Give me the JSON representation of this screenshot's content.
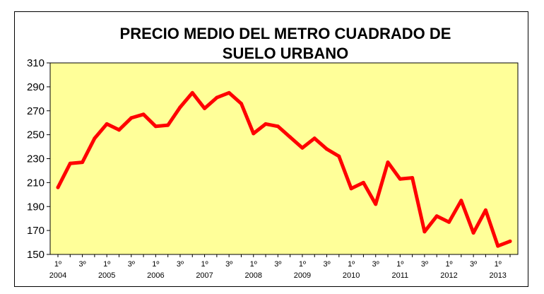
{
  "chart_data": {
    "type": "line",
    "title_lines": [
      "PRECIO MEDIO DEL METRO CUADRADO DE",
      "SUELO URBANO"
    ],
    "xlabel": "",
    "ylabel": "",
    "ylim": [
      150,
      310
    ],
    "yticks": [
      150,
      170,
      190,
      210,
      230,
      250,
      270,
      290,
      310
    ],
    "grid": false,
    "legend": "none",
    "colors": {
      "plot_background": "#ffff99",
      "line": "#ff0000",
      "frame": "#000000"
    },
    "x": [
      "1º 2004",
      "2º 2004",
      "3º 2004",
      "4º 2004",
      "1º 2005",
      "2º 2005",
      "3º 2005",
      "4º 2005",
      "1º 2006",
      "2º 2006",
      "3º 2006",
      "4º 2006",
      "1º 2007",
      "2º 2007",
      "3º 2007",
      "4º 2007",
      "1º 2008",
      "2º 2008",
      "3º 2008",
      "4º 2008",
      "1º 2009",
      "2º 2009",
      "3º 2009",
      "4º 2009",
      "1º 2010",
      "2º 2010",
      "3º 2010",
      "4º 2010",
      "1º 2011",
      "2º 2011",
      "3º 2011",
      "4º 2011",
      "1º 2012",
      "2º 2012",
      "3º 2012",
      "4º 2012",
      "1º 2013",
      "2º 2013"
    ],
    "series": [
      {
        "values": [
          206,
          226,
          227,
          247,
          259,
          254,
          264,
          267,
          257,
          258,
          273,
          285,
          272,
          281,
          285,
          276,
          251,
          259,
          257,
          248,
          239,
          247,
          238,
          232,
          205,
          210,
          192,
          227,
          213,
          214,
          169,
          182,
          177,
          195,
          168,
          187,
          157,
          161
        ]
      }
    ],
    "xtick_labels": [
      {
        "index": 0,
        "quarter": "1º",
        "year": "2004"
      },
      {
        "index": 2,
        "quarter": "3º",
        "year": ""
      },
      {
        "index": 4,
        "quarter": "1º",
        "year": "2005"
      },
      {
        "index": 6,
        "quarter": "3º",
        "year": ""
      },
      {
        "index": 8,
        "quarter": "1º",
        "year": "2006"
      },
      {
        "index": 10,
        "quarter": "3º",
        "year": ""
      },
      {
        "index": 12,
        "quarter": "1º",
        "year": "2007"
      },
      {
        "index": 14,
        "quarter": "3º",
        "year": ""
      },
      {
        "index": 16,
        "quarter": "1º",
        "year": "2008"
      },
      {
        "index": 18,
        "quarter": "3º",
        "year": ""
      },
      {
        "index": 20,
        "quarter": "1º",
        "year": "2009"
      },
      {
        "index": 22,
        "quarter": "3º",
        "year": ""
      },
      {
        "index": 24,
        "quarter": "1º",
        "year": "2010"
      },
      {
        "index": 26,
        "quarter": "3º",
        "year": ""
      },
      {
        "index": 28,
        "quarter": "1º",
        "year": "2011"
      },
      {
        "index": 30,
        "quarter": "3º",
        "year": ""
      },
      {
        "index": 32,
        "quarter": "1º",
        "year": "2012"
      },
      {
        "index": 34,
        "quarter": "3º",
        "year": ""
      },
      {
        "index": 36,
        "quarter": "1º",
        "year": "2013"
      }
    ]
  }
}
